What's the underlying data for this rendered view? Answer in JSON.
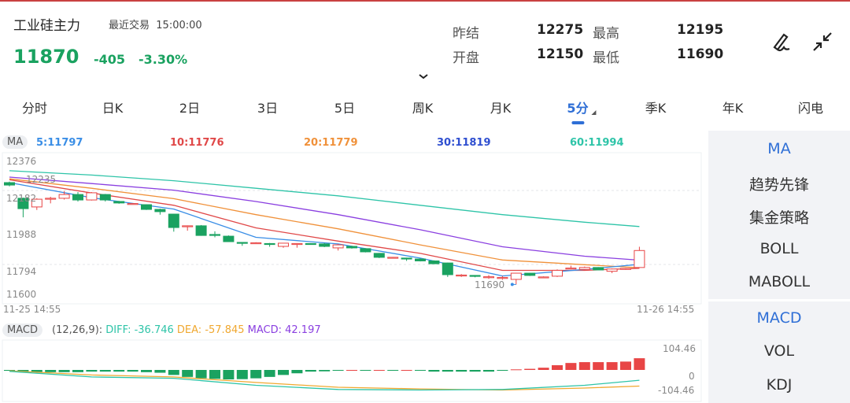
{
  "header": {
    "title": "工业硅主力",
    "last_trade_label": "最近交易",
    "last_trade_time": "15:00:00",
    "price": "11870",
    "change": "-405",
    "change_pct": "-3.30%",
    "stats": [
      {
        "label": "昨结",
        "value": "12275"
      },
      {
        "label": "最高",
        "value": "12195"
      },
      {
        "label": "开盘",
        "value": "12150"
      },
      {
        "label": "最低",
        "value": "11690"
      }
    ],
    "icons": [
      "draw-icon",
      "collapse-icon",
      "chevron-down-icon"
    ]
  },
  "tabs": [
    {
      "label": "分时"
    },
    {
      "label": "日K"
    },
    {
      "label": "2日"
    },
    {
      "label": "3日"
    },
    {
      "label": "5日"
    },
    {
      "label": "周K"
    },
    {
      "label": "月K"
    },
    {
      "label": "5分",
      "active": true
    },
    {
      "label": "季K"
    },
    {
      "label": "年K"
    },
    {
      "label": "闪电"
    }
  ],
  "sidebar": {
    "items": [
      {
        "label": "MA",
        "active": true
      },
      {
        "label": "趋势先锋"
      },
      {
        "label": "集金策略"
      },
      {
        "label": "BOLL"
      },
      {
        "label": "MABOLL"
      },
      {
        "label": "MACD",
        "active": true
      },
      {
        "label": "VOL"
      },
      {
        "label": "KDJ"
      }
    ]
  },
  "colors": {
    "up": "#e84545",
    "down": "#1aa260",
    "ma5": "#3a8ee6",
    "ma10": "#e04848",
    "ma20": "#f0913a",
    "ma30": "#2f4fd0",
    "ma60": "#2ec4a8",
    "purple": "#8a3fe0"
  },
  "chart_data": [
    {
      "type": "candlestick",
      "badge": "MA",
      "legend": [
        {
          "name": "ma5",
          "text": "5:11797"
        },
        {
          "name": "ma10",
          "text": "10:11776"
        },
        {
          "name": "ma20",
          "text": "20:11779"
        },
        {
          "name": "ma30",
          "text": "30:11819"
        },
        {
          "name": "ma60",
          "text": "60:11994"
        }
      ],
      "y_ticks": [
        "12376",
        "12182",
        "11988",
        "11794",
        "11600"
      ],
      "ylim": [
        11600,
        12376
      ],
      "x_start": "11-25 14:55",
      "x_end": "11-26 14:55",
      "high_marker": "12235",
      "low_marker": "11690",
      "ohlc": [
        [
          12230,
          12235,
          12210,
          12217
        ],
        [
          12147,
          12150,
          12046,
          12092
        ],
        [
          12101,
          12147,
          12085,
          12142
        ],
        [
          12142,
          12155,
          12120,
          12147
        ],
        [
          12147,
          12185,
          12140,
          12167
        ],
        [
          12167,
          12180,
          12130,
          12138
        ],
        [
          12138,
          12180,
          12135,
          12176
        ],
        [
          12167,
          12170,
          12130,
          12138
        ],
        [
          12130,
          12133,
          12118,
          12122
        ],
        [
          12117,
          12120,
          12115,
          12119
        ],
        [
          12113,
          12115,
          12085,
          12088
        ],
        [
          12088,
          12092,
          12060,
          12076
        ],
        [
          12063,
          12065,
          11970,
          11992
        ],
        [
          11996,
          12003,
          11975,
          12001
        ],
        [
          12001,
          12005,
          11948,
          11950
        ],
        [
          11955,
          11972,
          11940,
          11954
        ],
        [
          11946,
          11950,
          11915,
          11917
        ],
        [
          11913,
          11915,
          11895,
          11909
        ],
        [
          11909,
          11914,
          11905,
          11911
        ],
        [
          11907,
          11910,
          11890,
          11903
        ],
        [
          11892,
          11910,
          11885,
          11909
        ],
        [
          11905,
          11909,
          11885,
          11907
        ],
        [
          11907,
          11909,
          11903,
          11905
        ],
        [
          11905,
          11910,
          11888,
          11892
        ],
        [
          11884,
          11905,
          11870,
          11900
        ],
        [
          11892,
          11895,
          11880,
          11884
        ],
        [
          11880,
          11882,
          11860,
          11863
        ],
        [
          11855,
          11857,
          11830,
          11834
        ],
        [
          11830,
          11836,
          11828,
          11834
        ],
        [
          11830,
          11832,
          11815,
          11825
        ],
        [
          11825,
          11828,
          11812,
          11815
        ],
        [
          11815,
          11818,
          11798,
          11800
        ],
        [
          11804,
          11806,
          11730,
          11742
        ],
        [
          11738,
          11745,
          11730,
          11740
        ],
        [
          11738,
          11740,
          11728,
          11734
        ],
        [
          11729,
          11740,
          11720,
          11731
        ],
        [
          11725,
          11735,
          11715,
          11727
        ],
        [
          11717,
          11752,
          11690,
          11750
        ],
        [
          11750,
          11752,
          11735,
          11738
        ],
        [
          11728,
          11733,
          11726,
          11730
        ],
        [
          11734,
          11770,
          11730,
          11765
        ],
        [
          11775,
          11790,
          11770,
          11777
        ],
        [
          11770,
          11785,
          11765,
          11780
        ],
        [
          11780,
          11782,
          11765,
          11767
        ],
        [
          11760,
          11775,
          11750,
          11772
        ],
        [
          11772,
          11778,
          11768,
          11775
        ],
        [
          11780,
          11890,
          11778,
          11870
        ]
      ],
      "ma_sample_index": [
        0,
        6,
        12,
        18,
        24,
        30,
        36,
        42,
        46
      ],
      "ma": {
        "ma60": [
          12293,
          12270,
          12240,
          12200,
          12160,
          12110,
          12060,
          12020,
          11997
        ],
        "ma30": [
          12259,
          12225,
          12190,
          12130,
          12060,
          11980,
          11890,
          11840,
          11819
        ],
        "ma20": [
          12250,
          12200,
          12145,
          12060,
          11985,
          11900,
          11820,
          11795,
          11779
        ],
        "ma10": [
          12245,
          12175,
          12110,
          11990,
          11920,
          11855,
          11765,
          11765,
          11776
        ],
        "ma5": [
          12230,
          12150,
          12090,
          11940,
          11905,
          11830,
          11735,
          11770,
          11797
        ]
      }
    },
    {
      "type": "bar+line",
      "badge": "MACD",
      "params": "(12,26,9):",
      "diff_label": "DIFF: -36.746",
      "dea_label": "DEA: -57.845",
      "macd_label": "MACD: 42.197",
      "y_ticks": [
        "104.46",
        "0",
        "-104.46"
      ],
      "ylim": [
        -104.46,
        104.46
      ],
      "hist": [
        -3,
        -6,
        -8,
        -8,
        -8,
        -8,
        -6,
        -6,
        -6,
        -6,
        -8,
        -10,
        -18,
        -25,
        -30,
        -32,
        -34,
        -33,
        -30,
        -25,
        -18,
        -12,
        -6,
        -5,
        -1,
        0,
        -1,
        0,
        -1,
        0,
        -1,
        -6,
        -6,
        -6,
        -6,
        -6,
        -1,
        2,
        4,
        8,
        17,
        25,
        28,
        28,
        28,
        30,
        42
      ],
      "line_sample_index": [
        0,
        6,
        12,
        18,
        24,
        30,
        36,
        42,
        46
      ],
      "diff": [
        -5,
        -25,
        -30,
        -55,
        -70,
        -72,
        -70,
        -55,
        -37
      ],
      "dea": [
        -3,
        -18,
        -25,
        -45,
        -62,
        -68,
        -72,
        -65,
        -58
      ]
    }
  ]
}
